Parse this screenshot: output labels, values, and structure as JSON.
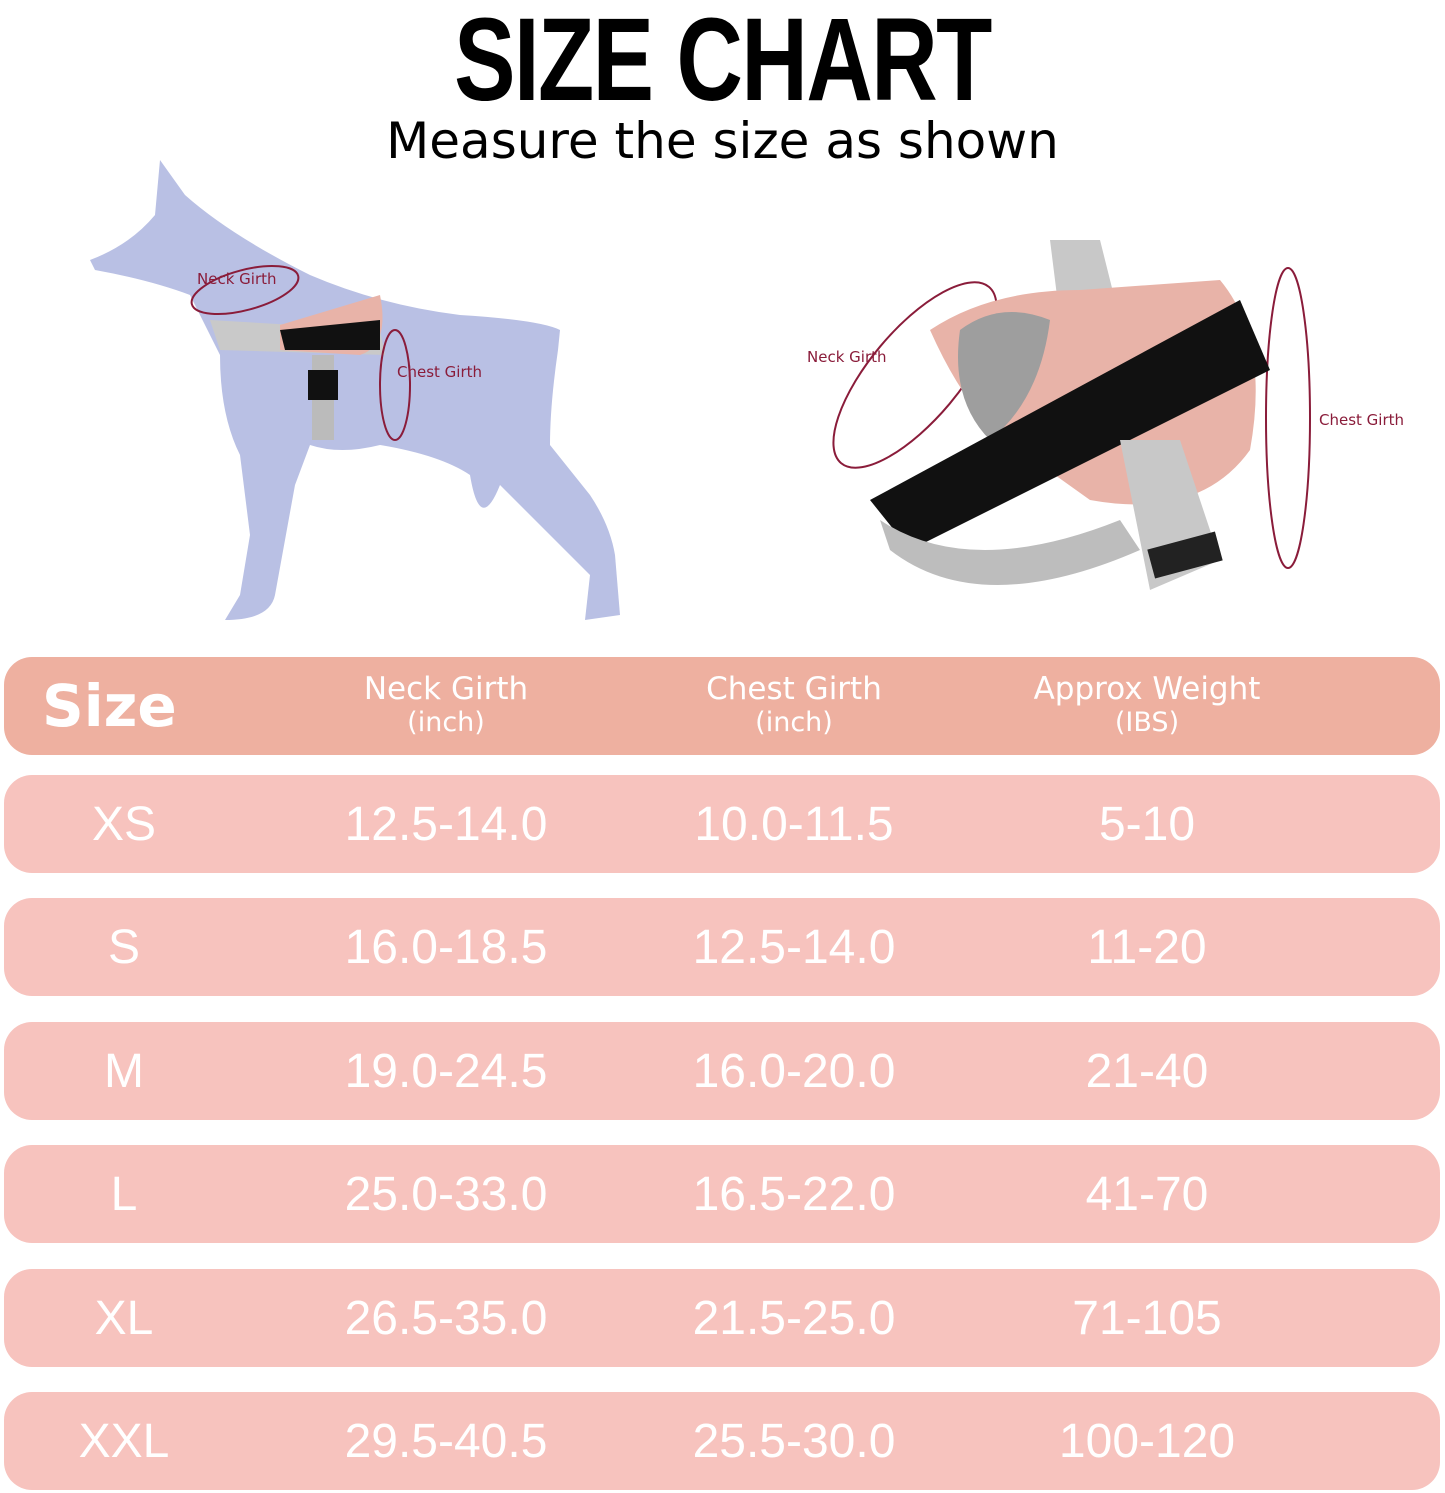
{
  "title": "SIZE CHART",
  "subtitle": "Measure the size as shown",
  "illustrations": {
    "dog_labels": {
      "neck": "Neck Girth",
      "chest": "Chest Girth"
    },
    "harness_labels": {
      "neck": "Neck Girth",
      "chest": "Chest Girth"
    }
  },
  "colors": {
    "header": "#eeb0a0",
    "row": "#f7c3be",
    "dog": "#b9c0e4",
    "label": "#8a1c3a",
    "harness": "#e8b3a8"
  },
  "table": {
    "headers": [
      {
        "label": "Size",
        "unit": ""
      },
      {
        "label": "Neck Girth",
        "unit": "(inch)"
      },
      {
        "label": "Chest Girth",
        "unit": "(inch)"
      },
      {
        "label": "Approx Weight",
        "unit": "(IBS)"
      }
    ],
    "rows": [
      [
        "XS",
        "12.5-14.0",
        "10.0-11.5",
        "5-10"
      ],
      [
        "S",
        "16.0-18.5",
        "12.5-14.0",
        "11-20"
      ],
      [
        "M",
        "19.0-24.5",
        "16.0-20.0",
        "21-40"
      ],
      [
        "L",
        "25.0-33.0",
        "16.5-22.0",
        "41-70"
      ],
      [
        "XL",
        "26.5-35.0",
        "21.5-25.0",
        "71-105"
      ],
      [
        "XXL",
        "29.5-40.5",
        "25.5-30.0",
        "100-120"
      ]
    ]
  }
}
